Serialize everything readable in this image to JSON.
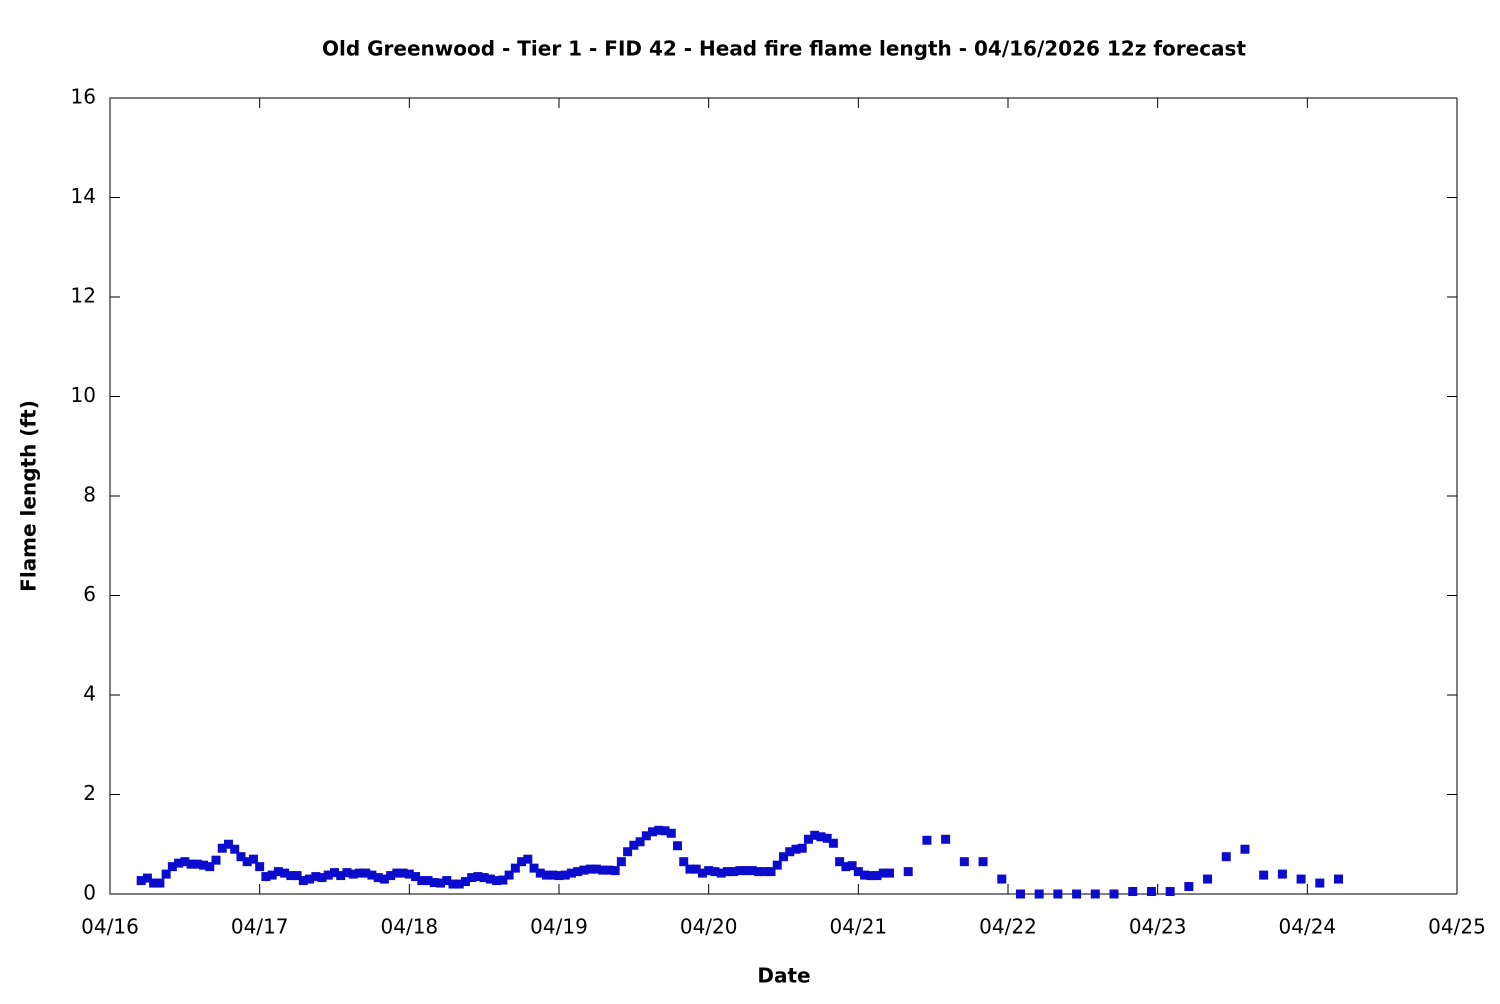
{
  "chart_data": {
    "type": "scatter",
    "title": "Old Greenwood - Tier 1 - FID 42 - Head fire flame length - 04/16/2026 12z forecast",
    "xlabel": "Date",
    "ylabel": "Flame length (ft)",
    "xlim": [
      0,
      216
    ],
    "xticks": [
      {
        "value": 0,
        "label": "04/16"
      },
      {
        "value": 24,
        "label": "04/17"
      },
      {
        "value": 48,
        "label": "04/18"
      },
      {
        "value": 72,
        "label": "04/19"
      },
      {
        "value": 96,
        "label": "04/20"
      },
      {
        "value": 120,
        "label": "04/21"
      },
      {
        "value": 144,
        "label": "04/22"
      },
      {
        "value": 168,
        "label": "04/23"
      },
      {
        "value": 192,
        "label": "04/24"
      },
      {
        "value": 216,
        "label": "04/25"
      }
    ],
    "ylim": [
      0,
      16
    ],
    "yticks": [
      0,
      2,
      4,
      6,
      8,
      10,
      12,
      14,
      16
    ],
    "grid": false,
    "series": [
      {
        "color": "#0c0ccc",
        "x": [
          5,
          6,
          7,
          8,
          9,
          10,
          11,
          12,
          13,
          14,
          15,
          16,
          17,
          18,
          19,
          20,
          21,
          22,
          23,
          24,
          25,
          26,
          27,
          28,
          29,
          30,
          31,
          32,
          33,
          34,
          35,
          36,
          37,
          38,
          39,
          40,
          41,
          42,
          43,
          44,
          45,
          46,
          47,
          48,
          49,
          50,
          51,
          52,
          53,
          54,
          55,
          56,
          57,
          58,
          59,
          60,
          61,
          62,
          63,
          64,
          65,
          66,
          67,
          68,
          69,
          70,
          71,
          72,
          73,
          74,
          75,
          76,
          77,
          78,
          79,
          80,
          81,
          82,
          83,
          84,
          85,
          86,
          87,
          88,
          89,
          90,
          91,
          92,
          93,
          94,
          95,
          96,
          97,
          98,
          99,
          100,
          101,
          102,
          103,
          104,
          105,
          106,
          107,
          108,
          109,
          110,
          111,
          112,
          113,
          114,
          115,
          116,
          117,
          118,
          119,
          120,
          121,
          122,
          123,
          124,
          125,
          128,
          131,
          134,
          137,
          140,
          143,
          146,
          149,
          152,
          155,
          158,
          161,
          164,
          167,
          170,
          173,
          176,
          179,
          182,
          185,
          188,
          191,
          194,
          197
        ],
        "values": [
          0.27,
          0.32,
          0.22,
          0.22,
          0.4,
          0.55,
          0.62,
          0.65,
          0.6,
          0.6,
          0.58,
          0.55,
          0.68,
          0.92,
          1.0,
          0.9,
          0.75,
          0.65,
          0.7,
          0.55,
          0.35,
          0.38,
          0.45,
          0.42,
          0.37,
          0.37,
          0.27,
          0.3,
          0.35,
          0.33,
          0.38,
          0.43,
          0.37,
          0.43,
          0.4,
          0.42,
          0.42,
          0.38,
          0.33,
          0.3,
          0.37,
          0.42,
          0.42,
          0.4,
          0.35,
          0.27,
          0.27,
          0.23,
          0.22,
          0.27,
          0.2,
          0.2,
          0.25,
          0.33,
          0.35,
          0.33,
          0.3,
          0.27,
          0.28,
          0.38,
          0.52,
          0.65,
          0.7,
          0.52,
          0.42,
          0.38,
          0.38,
          0.37,
          0.38,
          0.42,
          0.45,
          0.48,
          0.5,
          0.5,
          0.48,
          0.48,
          0.47,
          0.65,
          0.85,
          0.98,
          1.05,
          1.17,
          1.25,
          1.28,
          1.27,
          1.22,
          0.97,
          0.65,
          0.5,
          0.5,
          0.42,
          0.47,
          0.45,
          0.42,
          0.45,
          0.45,
          0.47,
          0.47,
          0.47,
          0.45,
          0.45,
          0.45,
          0.58,
          0.75,
          0.85,
          0.9,
          0.92,
          1.1,
          1.18,
          1.15,
          1.12,
          1.02,
          0.65,
          0.55,
          0.57,
          0.45,
          0.38,
          0.37,
          0.37,
          0.42,
          0.42,
          0.45,
          1.08,
          1.1,
          0.65,
          0.65,
          0.3,
          0,
          0,
          0,
          0,
          0,
          0,
          0.05,
          0.05,
          0.05,
          0.15,
          0.3,
          0.75,
          0.9,
          0.38,
          0.4,
          0.3,
          0.22,
          0.3
        ]
      }
    ]
  }
}
